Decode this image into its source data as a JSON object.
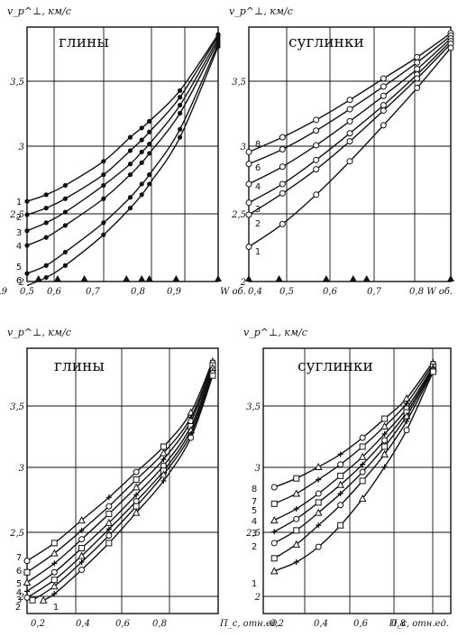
{
  "chart_data": [
    {
      "type": "line",
      "title": "глины",
      "ylabel": "v_p^⊥, км/с",
      "xlabel": "W об.",
      "xlim": [
        0.5,
        1.0
      ],
      "ylim": [
        1.97,
        3.9
      ],
      "xticks": [
        "0,5",
        "0,6",
        "0,7",
        "0,8",
        "0,9"
      ],
      "yticks": [
        "2",
        "2,5",
        "3",
        "3,5"
      ],
      "marker": "dot",
      "triangles_x": [
        0.53,
        0.58,
        0.65,
        0.76,
        0.8,
        0.82,
        0.89,
        1.0
      ],
      "curve_labels": [
        "1",
        "2",
        "3",
        "4",
        "5",
        "6"
      ],
      "series": [
        {
          "name": "1",
          "x": [
            0.5,
            0.55,
            0.6,
            0.7,
            0.77,
            0.8,
            0.82,
            0.9,
            1.0
          ],
          "y": [
            2.6,
            2.65,
            2.72,
            2.9,
            3.08,
            3.15,
            3.2,
            3.43,
            3.85
          ]
        },
        {
          "name": "2",
          "x": [
            0.5,
            0.55,
            0.6,
            0.7,
            0.77,
            0.8,
            0.82,
            0.9,
            1.0
          ],
          "y": [
            2.5,
            2.55,
            2.62,
            2.8,
            2.98,
            3.06,
            3.12,
            3.38,
            3.84
          ]
        },
        {
          "name": "3",
          "x": [
            0.5,
            0.55,
            0.6,
            0.7,
            0.77,
            0.8,
            0.82,
            0.9,
            1.0
          ],
          "y": [
            2.38,
            2.44,
            2.52,
            2.72,
            2.88,
            2.97,
            3.03,
            3.32,
            3.82
          ]
        },
        {
          "name": "4",
          "x": [
            0.5,
            0.55,
            0.6,
            0.7,
            0.77,
            0.8,
            0.82,
            0.9,
            1.0
          ],
          "y": [
            2.27,
            2.33,
            2.42,
            2.62,
            2.8,
            2.89,
            2.96,
            3.26,
            3.8
          ]
        },
        {
          "name": "5",
          "x": [
            0.5,
            0.55,
            0.6,
            0.7,
            0.77,
            0.8,
            0.82,
            0.9,
            1.0
          ],
          "y": [
            2.06,
            2.12,
            2.22,
            2.44,
            2.63,
            2.73,
            2.8,
            3.14,
            3.78
          ]
        },
        {
          "name": "6",
          "x": [
            0.5,
            0.55,
            0.6,
            0.7,
            0.77,
            0.8,
            0.82,
            0.9,
            1.0
          ],
          "y": [
            1.97,
            2.03,
            2.12,
            2.35,
            2.55,
            2.65,
            2.73,
            3.08,
            3.76
          ]
        }
      ]
    },
    {
      "type": "line",
      "title": "суглинки",
      "ylabel": "v_p^⊥, км/с",
      "xlabel": "W об.",
      "xlim": [
        0.4,
        1.0
      ],
      "ylim": [
        1.97,
        3.9
      ],
      "xticks": [
        "0,4",
        "0,5",
        "0,6",
        "0,7",
        "0,8",
        "0,9"
      ],
      "yticks": [
        "2",
        "2,5",
        "3",
        "3,5"
      ],
      "marker": "circle",
      "triangles_x": [
        0.4,
        0.49,
        0.63,
        0.71,
        0.75,
        1.0
      ],
      "curve_labels": [
        "8",
        "6",
        "4",
        "3",
        "2",
        "1"
      ],
      "series": [
        {
          "name": "8",
          "x": [
            0.4,
            0.5,
            0.6,
            0.7,
            0.8,
            0.9,
            1.0
          ],
          "y": [
            2.97,
            3.08,
            3.21,
            3.36,
            3.52,
            3.68,
            3.86
          ]
        },
        {
          "name": "6",
          "x": [
            0.4,
            0.5,
            0.6,
            0.7,
            0.8,
            0.9,
            1.0
          ],
          "y": [
            2.88,
            2.99,
            3.13,
            3.29,
            3.46,
            3.64,
            3.84
          ]
        },
        {
          "name": "4",
          "x": [
            0.4,
            0.5,
            0.6,
            0.7,
            0.8,
            0.9,
            1.0
          ],
          "y": [
            2.73,
            2.86,
            3.02,
            3.2,
            3.39,
            3.59,
            3.82
          ]
        },
        {
          "name": "3",
          "x": [
            0.4,
            0.5,
            0.6,
            0.7,
            0.8,
            0.9,
            1.0
          ],
          "y": [
            2.59,
            2.73,
            2.91,
            3.11,
            3.32,
            3.55,
            3.8
          ]
        },
        {
          "name": "2",
          "x": [
            0.4,
            0.5,
            0.6,
            0.7,
            0.8,
            0.9,
            1.0
          ],
          "y": [
            2.5,
            2.66,
            2.84,
            3.05,
            3.28,
            3.52,
            3.78
          ]
        },
        {
          "name": "1",
          "x": [
            0.4,
            0.5,
            0.6,
            0.7,
            0.8,
            0.9,
            1.0
          ],
          "y": [
            2.26,
            2.43,
            2.65,
            2.9,
            3.17,
            3.45,
            3.75
          ]
        }
      ]
    },
    {
      "type": "line",
      "title": "глины",
      "ylabel": "v_p^⊥, км/с",
      "xlabel": "П_с, отн.ед.",
      "xlim": [
        0.2,
        0.9
      ],
      "ylim": [
        1.97,
        3.9
      ],
      "xticks": [
        "0,2",
        "0,4",
        "0,6",
        "0,8"
      ],
      "yticks": [
        "2",
        "2,5",
        "3",
        "3,5"
      ],
      "marker": "mixed",
      "curve_labels": [
        "7",
        "6",
        "5",
        "4",
        "3",
        "2",
        "1"
      ],
      "series": [
        {
          "name": "7",
          "x": [
            0.2,
            0.3,
            0.4,
            0.5,
            0.6,
            0.7,
            0.8,
            0.88
          ],
          "y": [
            2.28,
            2.42,
            2.6,
            2.78,
            2.98,
            3.18,
            3.45,
            3.86
          ]
        },
        {
          "name": "6",
          "x": [
            0.2,
            0.3,
            0.4,
            0.5,
            0.6,
            0.7,
            0.8,
            0.88
          ],
          "y": [
            2.19,
            2.34,
            2.52,
            2.71,
            2.92,
            3.13,
            3.41,
            3.84
          ]
        },
        {
          "name": "5",
          "x": [
            0.2,
            0.3,
            0.4,
            0.5,
            0.6,
            0.7,
            0.8,
            0.88
          ],
          "y": [
            2.11,
            2.26,
            2.45,
            2.65,
            2.86,
            3.08,
            3.38,
            3.82
          ]
        },
        {
          "name": "4",
          "x": [
            0.2,
            0.3,
            0.4,
            0.5,
            0.6,
            0.7,
            0.8,
            0.88
          ],
          "y": [
            2.04,
            2.19,
            2.38,
            2.58,
            2.8,
            3.03,
            3.34,
            3.8
          ]
        },
        {
          "name": "3",
          "x": [
            0.2,
            0.3,
            0.4,
            0.5,
            0.6,
            0.7,
            0.8,
            0.88
          ],
          "y": [
            1.99,
            2.13,
            2.32,
            2.53,
            2.75,
            2.99,
            3.31,
            3.78
          ]
        },
        {
          "name": "2",
          "x": [
            0.22,
            0.3,
            0.4,
            0.5,
            0.6,
            0.7,
            0.8,
            0.88
          ],
          "y": [
            1.97,
            2.08,
            2.27,
            2.48,
            2.71,
            2.96,
            3.28,
            3.76
          ]
        },
        {
          "name": "1",
          "x": [
            0.26,
            0.3,
            0.4,
            0.5,
            0.6,
            0.7,
            0.8,
            0.88
          ],
          "y": [
            1.97,
            2.02,
            2.21,
            2.42,
            2.66,
            2.91,
            3.25,
            3.74
          ]
        }
      ]
    },
    {
      "type": "line",
      "title": "суглинки",
      "ylabel": "v_p^⊥, км/с",
      "xlabel": "П_с, отн.ед.",
      "xlim": [
        0.15,
        1.0
      ],
      "ylim": [
        1.97,
        3.9
      ],
      "xticks": [
        "0,2",
        "0,4",
        "0,6",
        "0,8"
      ],
      "yticks": [
        "2",
        "2,5",
        "3",
        "3,5"
      ],
      "marker": "mixed",
      "curve_labels": [
        "8",
        "7",
        "5",
        "4",
        "3",
        "2",
        "1"
      ],
      "series": [
        {
          "name": "8",
          "x": [
            0.2,
            0.3,
            0.4,
            0.5,
            0.6,
            0.7,
            0.8,
            0.92
          ],
          "y": [
            2.86,
            2.93,
            3.02,
            3.12,
            3.25,
            3.4,
            3.56,
            3.85
          ]
        },
        {
          "name": "7",
          "x": [
            0.2,
            0.3,
            0.4,
            0.5,
            0.6,
            0.7,
            0.8,
            0.92
          ],
          "y": [
            2.73,
            2.81,
            2.92,
            3.04,
            3.18,
            3.34,
            3.52,
            3.83
          ]
        },
        {
          "name": "5",
          "x": [
            0.2,
            0.3,
            0.4,
            0.5,
            0.6,
            0.7,
            0.8,
            0.92
          ],
          "y": [
            2.6,
            2.69,
            2.81,
            2.95,
            3.1,
            3.28,
            3.48,
            3.81
          ]
        },
        {
          "name": "4",
          "x": [
            0.2,
            0.3,
            0.4,
            0.5,
            0.6,
            0.7,
            0.8,
            0.92
          ],
          "y": [
            2.51,
            2.61,
            2.74,
            2.88,
            3.04,
            3.23,
            3.45,
            3.8
          ]
        },
        {
          "name": "3",
          "x": [
            0.2,
            0.3,
            0.4,
            0.5,
            0.6,
            0.7,
            0.8,
            0.92
          ],
          "y": [
            2.42,
            2.52,
            2.66,
            2.81,
            2.98,
            3.18,
            3.42,
            3.79
          ]
        },
        {
          "name": "2",
          "x": [
            0.2,
            0.3,
            0.4,
            0.5,
            0.6,
            0.7,
            0.8,
            0.92
          ],
          "y": [
            2.3,
            2.41,
            2.56,
            2.72,
            2.91,
            3.12,
            3.38,
            3.78
          ]
        },
        {
          "name": "1",
          "x": [
            0.2,
            0.3,
            0.4,
            0.5,
            0.6,
            0.7,
            0.8,
            0.92
          ],
          "y": [
            2.2,
            2.27,
            2.39,
            2.56,
            2.77,
            3.02,
            3.31,
            3.77
          ]
        }
      ]
    }
  ]
}
